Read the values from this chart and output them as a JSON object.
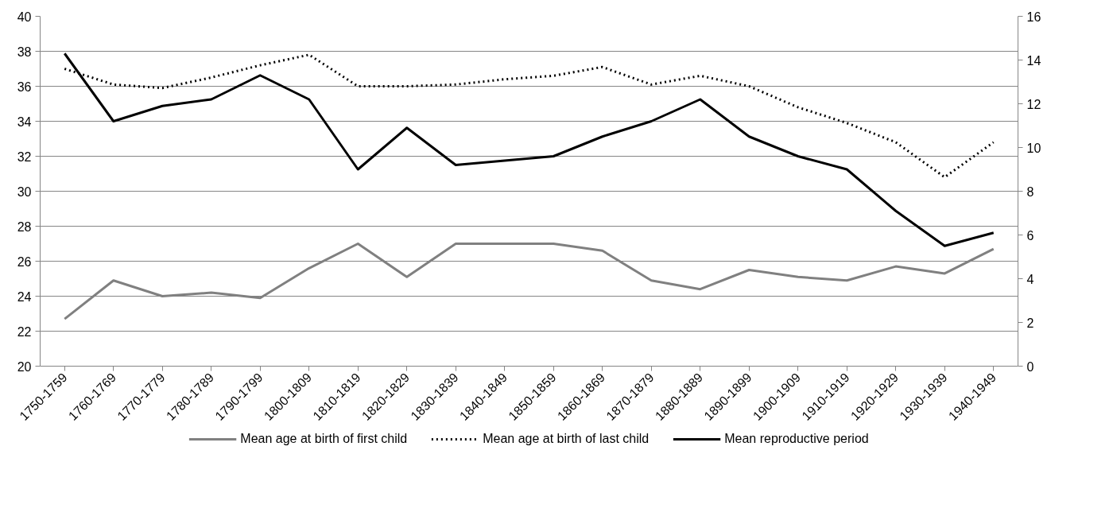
{
  "chart_data": {
    "type": "line",
    "categories": [
      "1750-1759",
      "1760-1769",
      "1770-1779",
      "1780-1789",
      "1790-1799",
      "1800-1809",
      "1810-1819",
      "1820-1829",
      "1830-1839",
      "1840-1849",
      "1850-1859",
      "1860-1869",
      "1870-1879",
      "1880-1889",
      "1890-1899",
      "1900-1909",
      "1910-1919",
      "1920-1929",
      "1930-1939",
      "1940-1949"
    ],
    "series": [
      {
        "name": "Mean age at birth of first child",
        "color": "#808080",
        "line_style": "solid",
        "values": [
          22.7,
          24.9,
          24.0,
          24.2,
          23.9,
          25.6,
          27.0,
          25.1,
          27.0,
          27.0,
          27.0,
          26.6,
          24.9,
          24.4,
          25.5,
          25.1,
          24.9,
          25.7,
          25.3,
          26.7
        ]
      },
      {
        "name": "Mean age at birth of last child",
        "color": "#000000",
        "line_style": "dotted",
        "values": [
          37.0,
          36.1,
          35.9,
          36.5,
          37.2,
          37.8,
          36.0,
          36.0,
          36.1,
          36.4,
          36.6,
          37.1,
          36.1,
          36.6,
          36.0,
          34.8,
          33.9,
          32.8,
          30.8,
          32.8
        ]
      },
      {
        "name": "Mean reproductive period",
        "color": "#000000",
        "line_style": "solid",
        "axis": "y2",
        "values": [
          14.3,
          11.2,
          11.9,
          12.2,
          13.3,
          12.2,
          9.0,
          10.9,
          9.2,
          9.4,
          9.6,
          10.5,
          11.2,
          12.2,
          10.5,
          9.6,
          9.0,
          7.1,
          5.5,
          6.1
        ]
      }
    ],
    "ylim": [
      20,
      40
    ],
    "yticks": [
      20,
      22,
      24,
      26,
      28,
      30,
      32,
      34,
      36,
      38,
      40
    ],
    "y2lim": [
      0,
      16
    ],
    "y2ticks": [
      0,
      2,
      4,
      6,
      8,
      10,
      12,
      14,
      16
    ],
    "grid": "y",
    "legend": "bottom",
    "marker": "none"
  }
}
